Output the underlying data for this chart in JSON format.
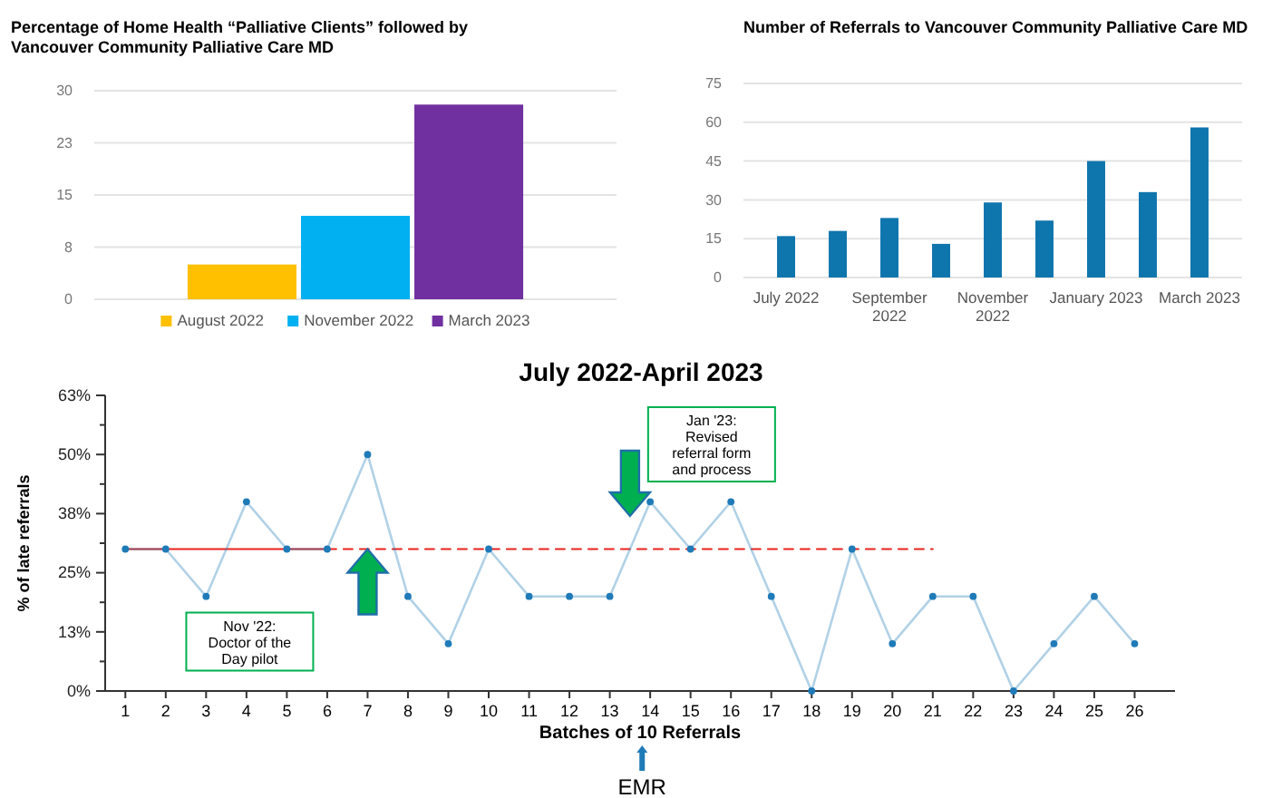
{
  "chart_data": [
    {
      "type": "bar",
      "title": "Percentage of Home Health “Palliative Clients” followed by\nVancouver Community Palliative Care MD",
      "categories": [
        null
      ],
      "series": [
        {
          "name": "August 2022",
          "color": "#ffc000",
          "values": [
            5
          ]
        },
        {
          "name": "November 2022",
          "color": "#00b0f0",
          "values": [
            12
          ]
        },
        {
          "name": "March 2023",
          "color": "#7030a0",
          "values": [
            28
          ]
        }
      ],
      "ylim": [
        0,
        30
      ],
      "yticks": [
        0,
        {
          "value": 7.5,
          "label": "8"
        },
        15,
        {
          "value": 22.5,
          "label": "23"
        },
        30
      ],
      "grid": "y",
      "legend": "bottom",
      "tick_labels": "y"
    },
    {
      "type": "bar",
      "title": "Number of Referrals to Vancouver Community Palliative Care MD",
      "categories": [
        "July 2022",
        null,
        "September 2022",
        null,
        "November 2022",
        null,
        "January 2023",
        null,
        "March 2023"
      ],
      "values": [
        16,
        18,
        23,
        13,
        29,
        22,
        45,
        33,
        58
      ],
      "color": "#0f75ad",
      "ylim": [
        0,
        75
      ],
      "yticks": [
        0,
        15,
        30,
        45,
        60,
        75
      ],
      "grid": "y"
    },
    {
      "type": "line",
      "title": "July 2022-April 2023",
      "xlabel": "Batches of 10 Referrals",
      "ylabel": "% of late referrals",
      "x": [
        1,
        2,
        3,
        4,
        5,
        6,
        7,
        8,
        9,
        10,
        11,
        12,
        13,
        14,
        15,
        16,
        17,
        18,
        19,
        20,
        21,
        22,
        23,
        24,
        25,
        26
      ],
      "xlim": [
        0.5,
        27
      ],
      "xticks": [
        1,
        2,
        3,
        4,
        5,
        6,
        7,
        8,
        9,
        10,
        11,
        12,
        13,
        14,
        15,
        16,
        17,
        18,
        19,
        20,
        21,
        22,
        23,
        24,
        25,
        26
      ],
      "ylim": [
        0,
        62.5
      ],
      "yticks": [
        {
          "value": 0,
          "label": "0%"
        },
        {
          "value": 6.25,
          "label": null
        },
        {
          "value": 12.5,
          "label": "13%"
        },
        {
          "value": 18.75,
          "label": null
        },
        {
          "value": 25,
          "label": "25%"
        },
        {
          "value": 31.25,
          "label": null
        },
        {
          "value": 37.5,
          "label": "38%"
        },
        {
          "value": 43.75,
          "label": null
        },
        {
          "value": 50,
          "label": "50%"
        },
        {
          "value": 56.25,
          "label": null
        },
        {
          "value": 62.5,
          "label": "63%"
        }
      ],
      "grid": false,
      "marker": "circle",
      "series": [
        {
          "color": "#1f7ab8",
          "values": [
            30,
            30,
            20,
            40,
            30,
            30,
            50,
            20,
            10,
            30,
            20,
            20,
            20,
            40,
            30,
            40,
            20,
            0,
            30,
            10,
            20,
            20,
            0,
            10,
            20,
            10
          ]
        },
        {
          "type": "line",
          "x": [
            1,
            6
          ],
          "values": [
            30,
            30
          ],
          "color": "#e8231f",
          "line_style": "solid",
          "marker": "none"
        },
        {
          "type": "line",
          "x": [
            6,
            21
          ],
          "values": [
            30,
            30
          ],
          "color": "#e8231f",
          "line_style": "dashed",
          "marker": "none"
        }
      ],
      "annotations": [
        "Nov '22:\nDoctor of the\nDay pilot",
        "Jan '23:\nRevised\nreferral form\nand process",
        "EMR"
      ]
    }
  ]
}
